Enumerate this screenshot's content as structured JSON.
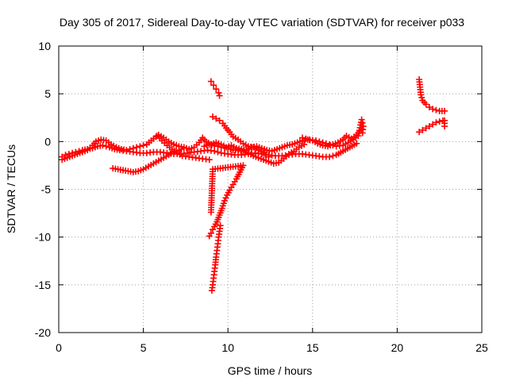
{
  "chart_data": {
    "type": "scatter",
    "title": "Day 305 of 2017, Sidereal Day-to-day VTEC variation (SDTVAR) for receiver p033",
    "xlabel": "GPS time / hours",
    "ylabel": "SDTVAR / TECUs",
    "xlim": [
      0,
      25
    ],
    "ylim": [
      -20,
      10
    ],
    "xticks": [
      0,
      5,
      10,
      15,
      20,
      25
    ],
    "yticks": [
      -20,
      -15,
      -10,
      -5,
      0,
      5,
      10
    ],
    "grid": true,
    "marker": "plus",
    "color": "#ff0000",
    "series": [
      {
        "values": [
          [
            0.2,
            -1.6
          ],
          [
            0.4,
            -1.4
          ],
          [
            0.6,
            -1.3
          ],
          [
            0.8,
            -1.2
          ],
          [
            1.0,
            -1.1
          ],
          [
            1.2,
            -1.0
          ],
          [
            1.4,
            -0.9
          ],
          [
            1.7,
            -0.8
          ],
          [
            2.0,
            -0.7
          ],
          [
            2.3,
            -0.5
          ],
          [
            2.6,
            -0.4
          ],
          [
            3.0,
            -0.6
          ],
          [
            3.3,
            -0.8
          ],
          [
            3.6,
            -0.9
          ],
          [
            4.0,
            -1.0
          ],
          [
            4.4,
            -1.1
          ],
          [
            4.8,
            -1.2
          ],
          [
            5.2,
            -1.2
          ],
          [
            5.6,
            -1.1
          ],
          [
            6.0,
            -1.1
          ],
          [
            6.4,
            -1.2
          ],
          [
            6.8,
            -1.3
          ],
          [
            7.2,
            -1.3
          ],
          [
            7.6,
            -1.2
          ],
          [
            8.0,
            -1.1
          ],
          [
            8.4,
            -1.0
          ],
          [
            8.8,
            -0.9
          ],
          [
            9.2,
            -1.0
          ],
          [
            9.6,
            -1.2
          ],
          [
            10.0,
            -1.3
          ],
          [
            10.4,
            -1.4
          ],
          [
            10.8,
            -1.4
          ],
          [
            11.2,
            -1.3
          ],
          [
            11.6,
            -1.2
          ],
          [
            12.0,
            -1.3
          ],
          [
            12.4,
            -1.4
          ],
          [
            12.8,
            -1.5
          ],
          [
            13.2,
            -1.5
          ],
          [
            13.6,
            -1.4
          ],
          [
            14.0,
            -1.3
          ],
          [
            14.4,
            -1.3
          ],
          [
            14.8,
            -1.4
          ],
          [
            15.2,
            -1.5
          ],
          [
            15.6,
            -1.6
          ],
          [
            16.0,
            -1.6
          ],
          [
            16.4,
            -1.4
          ],
          [
            16.8,
            -1.0
          ],
          [
            17.2,
            -0.6
          ],
          [
            17.6,
            -0.2
          ]
        ]
      },
      {
        "values": [
          [
            0.2,
            -1.9
          ],
          [
            0.5,
            -1.7
          ],
          [
            0.8,
            -1.5
          ],
          [
            1.1,
            -1.3
          ],
          [
            1.4,
            -1.1
          ],
          [
            1.7,
            -0.9
          ],
          [
            2.0,
            -0.4
          ],
          [
            2.2,
            0.0
          ],
          [
            2.5,
            0.2
          ],
          [
            2.8,
            0.1
          ],
          [
            3.1,
            -0.3
          ],
          [
            3.4,
            -0.6
          ],
          [
            3.7,
            -0.8
          ],
          [
            4.0,
            -0.9
          ],
          [
            4.4,
            -0.7
          ],
          [
            4.8,
            -0.5
          ],
          [
            5.2,
            -0.3
          ],
          [
            5.6,
            0.3
          ],
          [
            5.9,
            0.7
          ],
          [
            6.2,
            0.4
          ],
          [
            6.5,
            0.0
          ],
          [
            6.8,
            -0.3
          ],
          [
            7.1,
            -0.5
          ],
          [
            7.4,
            -0.6
          ],
          [
            7.7,
            -0.8
          ],
          [
            8.0,
            -0.6
          ],
          [
            8.3,
            -0.1
          ],
          [
            8.5,
            0.4
          ],
          [
            8.7,
            0.0
          ],
          [
            9.0,
            -0.3
          ],
          [
            9.3,
            -0.1
          ],
          [
            9.6,
            -0.3
          ],
          [
            9.9,
            -0.6
          ],
          [
            10.2,
            -0.4
          ],
          [
            10.5,
            -0.7
          ],
          [
            10.8,
            -0.8
          ],
          [
            11.1,
            -0.9
          ],
          [
            11.4,
            -0.6
          ],
          [
            11.7,
            -0.5
          ],
          [
            12.0,
            -0.7
          ],
          [
            12.3,
            -0.9
          ],
          [
            12.6,
            -1.0
          ],
          [
            12.9,
            -0.8
          ],
          [
            13.2,
            -0.6
          ],
          [
            13.5,
            -0.4
          ],
          [
            13.8,
            -0.3
          ],
          [
            14.1,
            -0.1
          ],
          [
            14.4,
            0.1
          ],
          [
            14.7,
            0.2
          ],
          [
            15.0,
            0.1
          ],
          [
            15.3,
            -0.2
          ],
          [
            15.6,
            -0.4
          ],
          [
            15.9,
            -0.5
          ],
          [
            16.2,
            -0.3
          ],
          [
            16.5,
            -0.1
          ],
          [
            16.8,
            0.2
          ],
          [
            17.0,
            0.6
          ],
          [
            17.3,
            0.3
          ],
          [
            17.6,
            0.7
          ],
          [
            17.9,
            1.3
          ]
        ]
      },
      {
        "values": [
          [
            3.2,
            -2.8
          ],
          [
            3.5,
            -2.9
          ],
          [
            3.8,
            -3.0
          ],
          [
            4.1,
            -3.1
          ],
          [
            4.4,
            -3.2
          ],
          [
            4.7,
            -3.1
          ],
          [
            5.0,
            -2.9
          ],
          [
            5.3,
            -2.6
          ],
          [
            5.6,
            -2.3
          ],
          [
            5.9,
            -2.0
          ],
          [
            6.2,
            -1.7
          ],
          [
            6.5,
            -1.4
          ],
          [
            6.8,
            -1.1
          ],
          [
            7.1,
            -0.9
          ],
          [
            7.4,
            -0.7
          ]
        ]
      },
      {
        "values": [
          [
            5.8,
            0.6
          ],
          [
            6.1,
            0.1
          ],
          [
            6.4,
            -0.4
          ],
          [
            6.7,
            -0.8
          ],
          [
            7.0,
            -1.2
          ],
          [
            7.3,
            -1.5
          ],
          [
            7.7,
            -1.6
          ],
          [
            8.1,
            -1.7
          ],
          [
            8.5,
            -1.8
          ],
          [
            8.9,
            -1.9
          ]
        ]
      },
      {
        "values": [
          [
            8.6,
            -0.5
          ],
          [
            8.9,
            -0.3
          ],
          [
            9.2,
            -0.4
          ],
          [
            9.6,
            -0.6
          ],
          [
            10.0,
            -0.7
          ],
          [
            10.3,
            -0.9
          ],
          [
            10.6,
            -0.9
          ],
          [
            10.9,
            -1.0
          ],
          [
            11.2,
            -1.2
          ],
          [
            11.5,
            -1.5
          ],
          [
            11.8,
            -1.7
          ],
          [
            12.1,
            -1.9
          ],
          [
            12.4,
            -2.1
          ],
          [
            12.7,
            -2.3
          ],
          [
            13.0,
            -2.2
          ],
          [
            13.3,
            -1.8
          ],
          [
            13.6,
            -1.3
          ],
          [
            13.9,
            -1.0
          ],
          [
            14.2,
            -0.6
          ],
          [
            14.5,
            -0.3
          ]
        ]
      },
      {
        "values": [
          [
            9.1,
            2.6
          ],
          [
            9.3,
            2.4
          ],
          [
            9.5,
            2.2
          ],
          [
            9.7,
            1.9
          ],
          [
            9.9,
            1.4
          ],
          [
            10.1,
            1.0
          ],
          [
            10.3,
            0.5
          ],
          [
            10.6,
            0.2
          ],
          [
            10.9,
            -0.2
          ],
          [
            11.2,
            -0.5
          ],
          [
            11.5,
            -0.6
          ],
          [
            11.8,
            -0.9
          ],
          [
            12.1,
            -1.2
          ],
          [
            12.4,
            -1.6
          ]
        ]
      },
      {
        "values": [
          [
            9.0,
            6.3
          ],
          [
            9.15,
            5.9
          ],
          [
            9.3,
            5.5
          ],
          [
            9.45,
            5.1
          ],
          [
            9.5,
            4.8
          ]
        ]
      },
      {
        "values": [
          [
            8.9,
            -9.9
          ],
          [
            9.0,
            -9.6
          ],
          [
            9.1,
            -9.2
          ],
          [
            9.2,
            -8.9
          ],
          [
            9.35,
            -8.4
          ],
          [
            9.5,
            -7.7
          ],
          [
            9.65,
            -7.0
          ],
          [
            9.8,
            -6.2
          ],
          [
            9.95,
            -5.6
          ],
          [
            10.1,
            -5.1
          ],
          [
            10.3,
            -4.5
          ],
          [
            10.5,
            -3.9
          ],
          [
            10.7,
            -3.2
          ],
          [
            10.9,
            -2.5
          ],
          [
            9.1,
            -2.9
          ],
          [
            9.0,
            -7.4
          ]
        ]
      },
      {
        "values": [
          [
            9.05,
            -15.6
          ],
          [
            9.1,
            -15.0
          ],
          [
            9.15,
            -14.3
          ],
          [
            9.2,
            -13.6
          ],
          [
            9.25,
            -12.9
          ],
          [
            9.3,
            -12.1
          ],
          [
            9.35,
            -11.4
          ],
          [
            9.4,
            -10.7
          ],
          [
            9.45,
            -10.0
          ],
          [
            9.5,
            -9.4
          ],
          [
            9.55,
            -8.8
          ]
        ]
      },
      {
        "values": [
          [
            14.4,
            0.4
          ],
          [
            14.8,
            0.2
          ],
          [
            15.2,
            0.1
          ],
          [
            15.6,
            -0.1
          ],
          [
            16.0,
            -0.3
          ],
          [
            16.4,
            -0.5
          ],
          [
            16.8,
            -0.4
          ],
          [
            17.1,
            -0.1
          ],
          [
            17.4,
            0.2
          ],
          [
            17.7,
            0.6
          ],
          [
            17.9,
            2.3
          ],
          [
            18.0,
            1.6
          ],
          [
            17.95,
            0.9
          ]
        ]
      },
      {
        "values": [
          [
            21.3,
            6.5
          ],
          [
            21.35,
            5.7
          ],
          [
            21.4,
            4.9
          ],
          [
            21.5,
            4.3
          ],
          [
            21.7,
            3.9
          ],
          [
            21.9,
            3.6
          ],
          [
            22.1,
            3.4
          ],
          [
            22.3,
            3.3
          ],
          [
            22.5,
            3.2
          ],
          [
            22.8,
            3.2
          ]
        ]
      },
      {
        "values": [
          [
            21.3,
            1.0
          ],
          [
            21.5,
            1.2
          ],
          [
            21.7,
            1.4
          ],
          [
            21.9,
            1.6
          ],
          [
            22.1,
            1.8
          ],
          [
            22.3,
            2.0
          ],
          [
            22.5,
            2.1
          ],
          [
            22.7,
            2.2
          ],
          [
            22.8,
            2.2
          ],
          [
            22.8,
            1.6
          ]
        ]
      }
    ]
  }
}
